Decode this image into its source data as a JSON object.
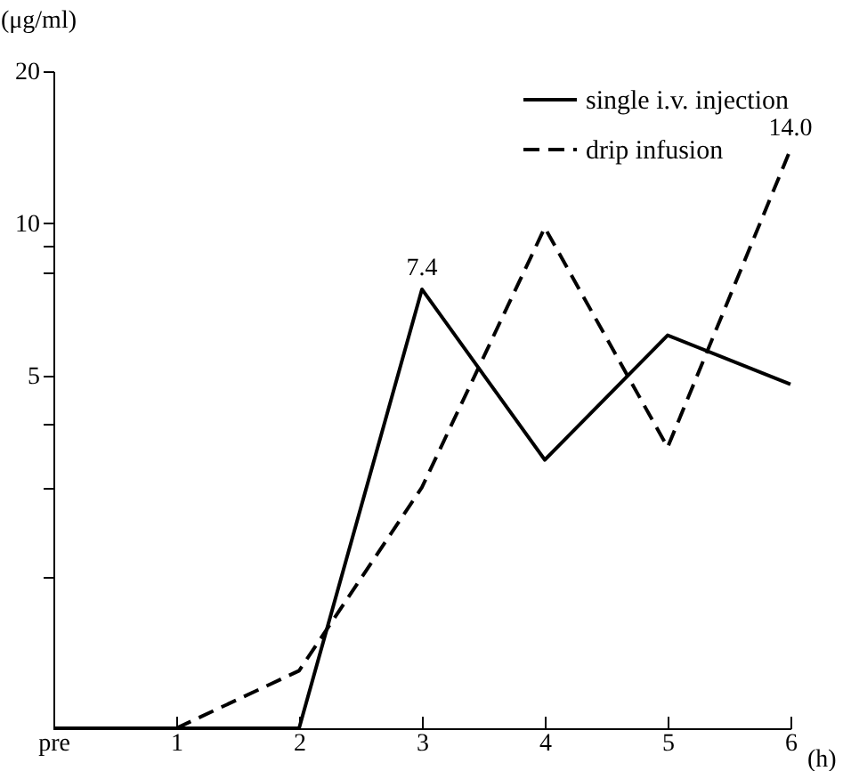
{
  "chart_data": {
    "type": "line",
    "xlabel": "(h)",
    "ylabel": "(μg/ml)",
    "log": "y",
    "ylim": [
      1,
      20
    ],
    "yticks": [
      20,
      10,
      {
        "value": 9,
        "label": null
      },
      {
        "value": 8,
        "label": null
      },
      5,
      {
        "value": 4,
        "label": null
      },
      {
        "value": 3,
        "label": null
      },
      {
        "value": 2,
        "label": null
      }
    ],
    "grid": false,
    "legend": "top right",
    "marker": "none",
    "categories": [
      "pre",
      "1",
      "2",
      "3",
      "4",
      "5",
      "6"
    ],
    "series": [
      {
        "name": "single i.v. injection",
        "color": "#000000",
        "line_style": "solid",
        "values": [
          1,
          1,
          1,
          7.4,
          3.4,
          6.0,
          4.8
        ],
        "value_labels": [
          null,
          null,
          null,
          "7.4",
          null,
          null,
          null
        ]
      },
      {
        "name": "drip infusion",
        "color": "#000000",
        "line_style": "dashed",
        "values": [
          null,
          1,
          1.3,
          3.0,
          9.8,
          3.6,
          14.0
        ],
        "value_labels": [
          null,
          null,
          null,
          null,
          null,
          null,
          "14.0"
        ]
      }
    ]
  }
}
